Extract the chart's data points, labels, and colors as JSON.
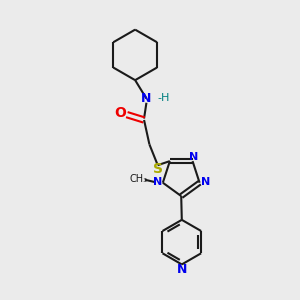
{
  "bg_color": "#ebebeb",
  "bond_color": "#1a1a1a",
  "N_color": "#0000ee",
  "O_color": "#ee0000",
  "S_color": "#aaaa00",
  "H_color": "#008080",
  "line_width": 1.5,
  "fig_width": 3.0,
  "fig_height": 3.0,
  "dpi": 100,
  "xlim": [
    0,
    10
  ],
  "ylim": [
    0,
    10
  ]
}
